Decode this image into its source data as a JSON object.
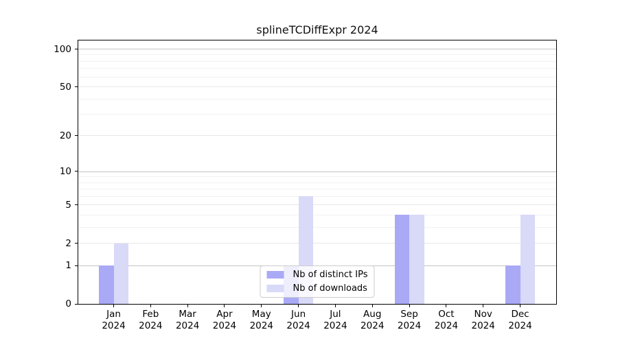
{
  "colors": {
    "bar_ips": "#a9a9f6",
    "bar_downloads": "#d9d9f8",
    "grid_decade": "#c3c3c3",
    "grid_mid": "#e7e7e7",
    "grid_minor": "#f2f2f2",
    "axis": "#000000",
    "background": "#ffffff"
  },
  "chart_data": {
    "type": "bar",
    "title": "splineTCDiffExpr 2024",
    "xlabel": "",
    "ylabel": "",
    "categories": [
      "Jan",
      "Feb",
      "Mar",
      "Apr",
      "May",
      "Jun",
      "Jul",
      "Aug",
      "Sep",
      "Oct",
      "Nov",
      "Dec"
    ],
    "year": "2024",
    "series": [
      {
        "name": "Nb of distinct IPs",
        "values": [
          1,
          0,
          0,
          0,
          0,
          1,
          0,
          0,
          4,
          0,
          0,
          1
        ]
      },
      {
        "name": "Nb of downloads",
        "values": [
          2,
          0,
          0,
          0,
          0,
          6,
          0,
          0,
          4,
          0,
          0,
          4
        ]
      }
    ],
    "y_scale": "log1p",
    "y_ticks": [
      0,
      1,
      2,
      5,
      10,
      20,
      50,
      100
    ],
    "y_minor_ticks": [
      3,
      4,
      6,
      7,
      8,
      9,
      30,
      40,
      60,
      70,
      80,
      90
    ],
    "ylim": [
      0,
      117
    ],
    "grid": true,
    "legend_position": "lower center"
  }
}
